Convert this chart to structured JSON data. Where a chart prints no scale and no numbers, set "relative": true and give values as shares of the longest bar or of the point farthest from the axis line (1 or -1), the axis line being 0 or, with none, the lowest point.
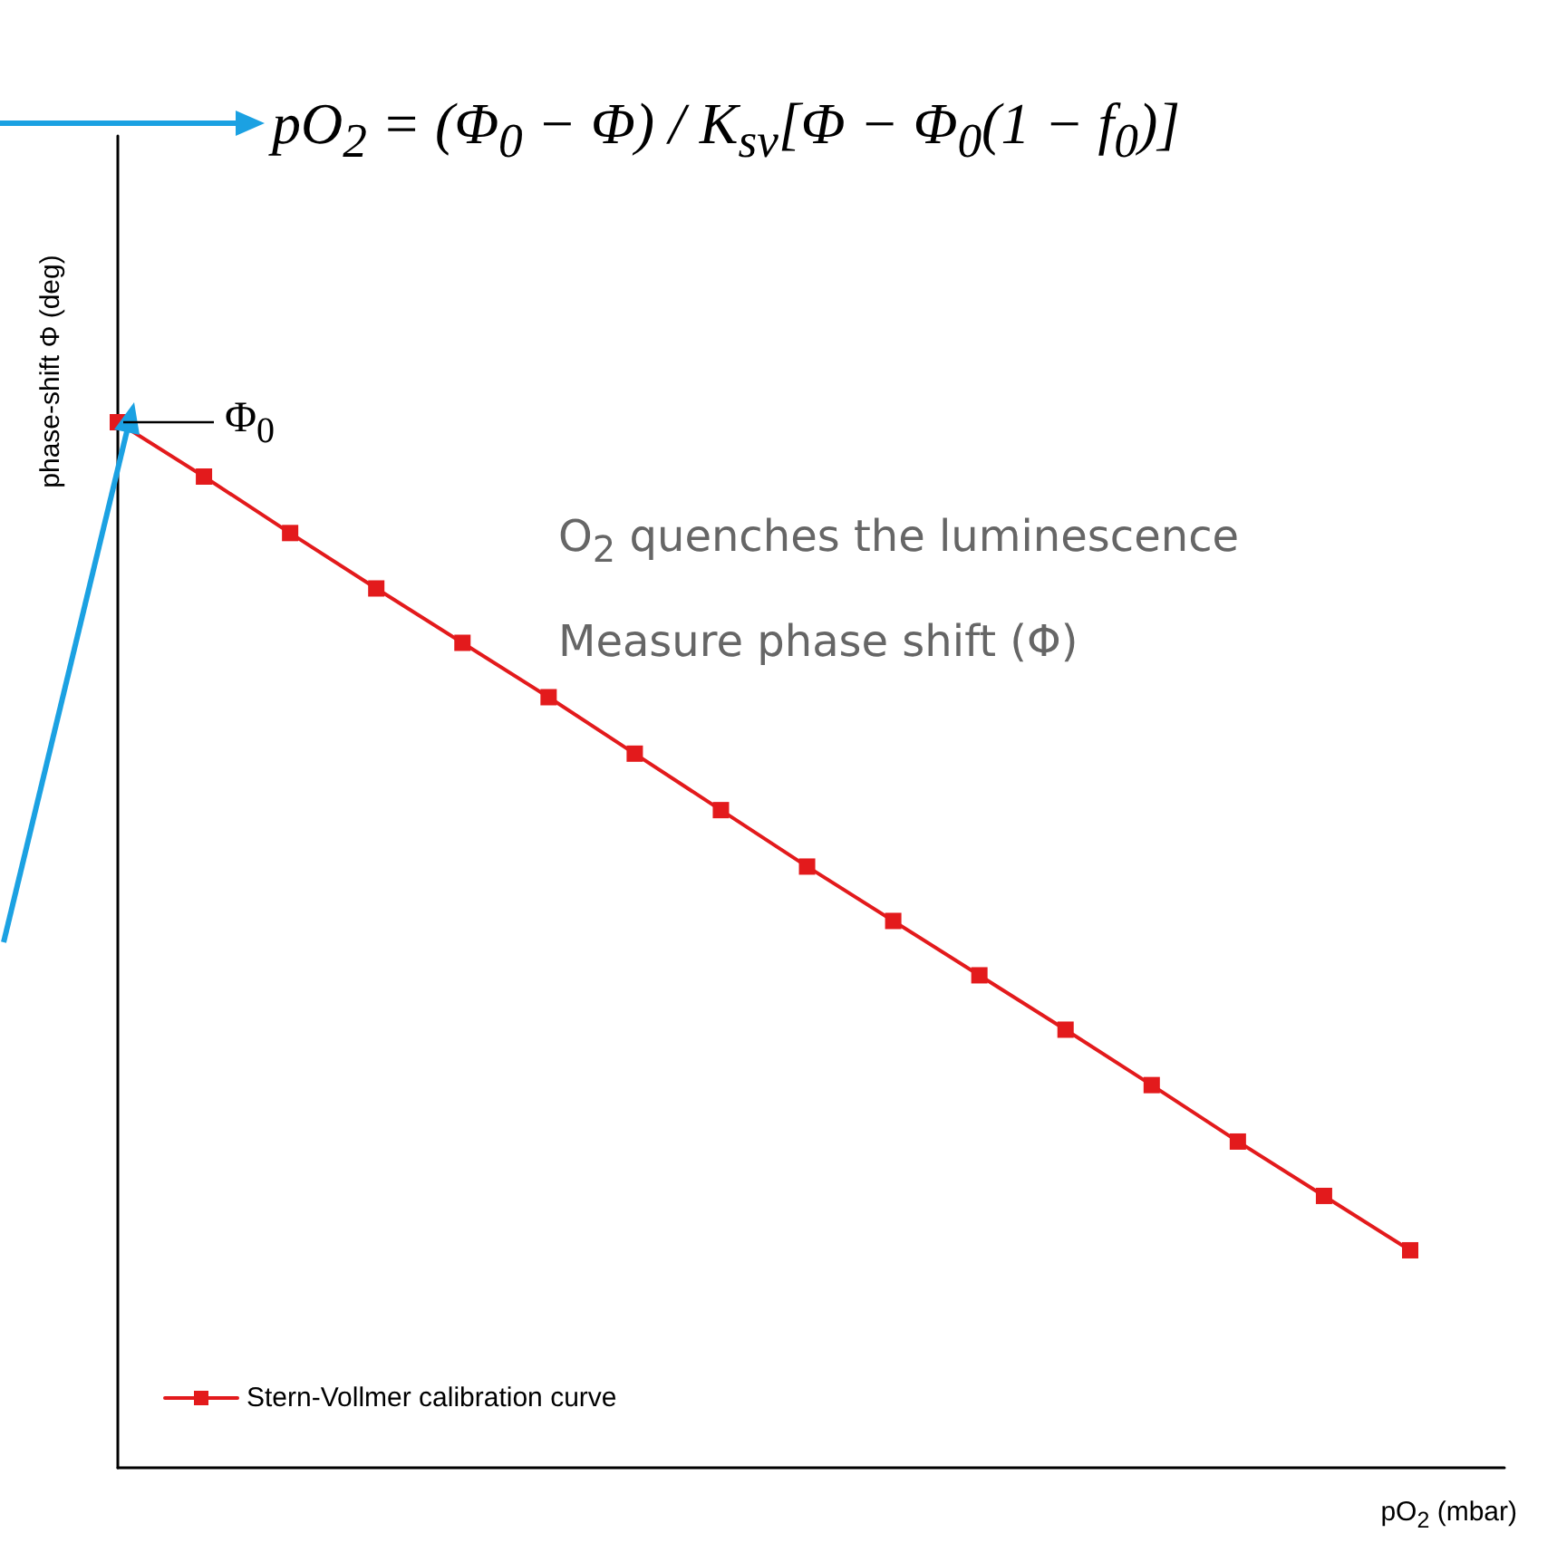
{
  "chart_data": {
    "type": "line",
    "relative": true,
    "categories": [
      null,
      null,
      null,
      null,
      null,
      null,
      null,
      null,
      null,
      null,
      null,
      null,
      null,
      null,
      null,
      null
    ],
    "series": [
      {
        "name": "Stern-Vollmer calibration curve",
        "color": "#e31a1c",
        "values": [
          1,
          0.948,
          0.894,
          0.841,
          0.789,
          0.737,
          0.683,
          0.629,
          0.575,
          0.523,
          0.471,
          0.419,
          0.366,
          0.312,
          0.26,
          0.208
        ]
      }
    ],
    "xlabel": "pO$_{2}$ (mbar)",
    "ylabel": "phase-shift Φ (deg)",
    "marker": "square",
    "line_style": "solid",
    "legend": "bottom left",
    "grid": false,
    "annotations": [
      "pO$_{2}$ = (Φ$_{0}$ − Φ) / K$_{sv}$[Φ − Φ$_{0}$(1 − f$_{0}$)]",
      "Φ$_{0}$",
      "O$_{2}$ quenches the luminescence",
      "Measure phase shift (Φ)"
    ]
  }
}
